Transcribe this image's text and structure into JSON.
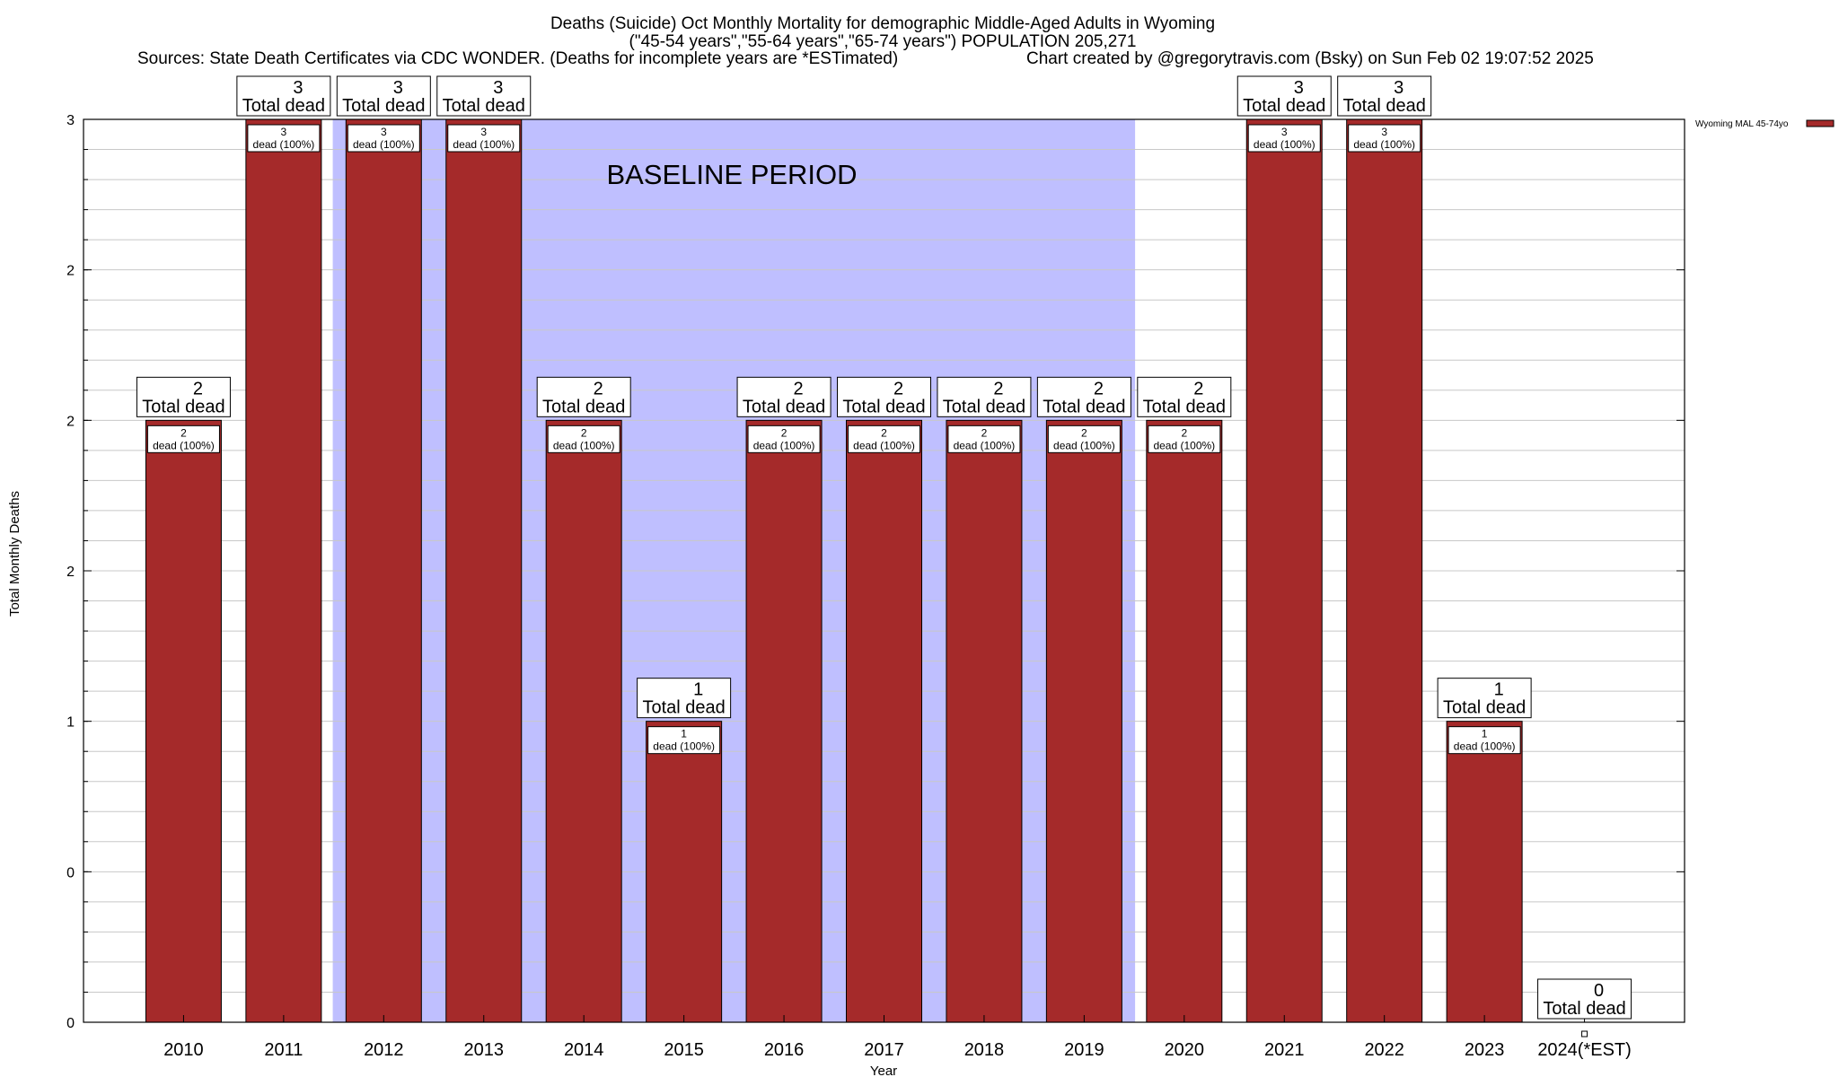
{
  "chart_data": {
    "type": "bar",
    "title_line1": "Deaths (Suicide) Oct Monthly Mortality for demographic Middle-Aged Adults in Wyoming",
    "title_line2": "(\"45-54 years\",\"55-64 years\",\"65-74 years\") POPULATION 205,271",
    "sources": "Sources: State Death Certificates via CDC WONDER. (Deaths for incomplete years are *ESTimated)",
    "credit": "Chart created by @gregorytravis.com (Bsky) on Sun Feb 02 19:07:52 2025",
    "xlabel": "Year",
    "ylabel": "Total Monthly Deaths",
    "categories": [
      "2010",
      "2011",
      "2012",
      "2013",
      "2014",
      "2015",
      "2016",
      "2017",
      "2018",
      "2019",
      "2020",
      "2021",
      "2022",
      "2023",
      "2024(*EST)"
    ],
    "series": [
      {
        "name": "Wyoming MAL 45-74yo",
        "color": "#a52a2a",
        "values": [
          2,
          3,
          3,
          3,
          2,
          1,
          2,
          2,
          2,
          2,
          2,
          3,
          3,
          1,
          0
        ]
      }
    ],
    "top_labels": [
      {
        "count": "2",
        "text": "Total dead"
      },
      {
        "count": "3",
        "text": "Total dead"
      },
      {
        "count": "3",
        "text": "Total dead"
      },
      {
        "count": "3",
        "text": "Total dead"
      },
      {
        "count": "2",
        "text": "Total dead"
      },
      {
        "count": "1",
        "text": "Total dead"
      },
      {
        "count": "2",
        "text": "Total dead"
      },
      {
        "count": "2",
        "text": "Total dead"
      },
      {
        "count": "2",
        "text": "Total dead"
      },
      {
        "count": "2",
        "text": "Total dead"
      },
      {
        "count": "2",
        "text": "Total dead"
      },
      {
        "count": "3",
        "text": "Total dead"
      },
      {
        "count": "3",
        "text": "Total dead"
      },
      {
        "count": "1",
        "text": "Total dead"
      },
      {
        "count": "0",
        "text": "Total dead"
      }
    ],
    "inner_labels": [
      {
        "count": "2",
        "text": "dead (100%)"
      },
      {
        "count": "3",
        "text": "dead (100%)"
      },
      {
        "count": "3",
        "text": "dead (100%)"
      },
      {
        "count": "3",
        "text": "dead (100%)"
      },
      {
        "count": "2",
        "text": "dead (100%)"
      },
      {
        "count": "1",
        "text": "dead (100%)"
      },
      {
        "count": "2",
        "text": "dead (100%)"
      },
      {
        "count": "2",
        "text": "dead (100%)"
      },
      {
        "count": "2",
        "text": "dead (100%)"
      },
      {
        "count": "2",
        "text": "dead (100%)"
      },
      {
        "count": "2",
        "text": "dead (100%)"
      },
      {
        "count": "3",
        "text": "dead (100%)"
      },
      {
        "count": "3",
        "text": "dead (100%)"
      },
      {
        "count": "1",
        "text": "dead (100%)"
      },
      null
    ],
    "ylim": [
      0,
      3
    ],
    "y_tick_positions": [
      0,
      0.5,
      1,
      1.5,
      2,
      2.5,
      3
    ],
    "y_tick_labels": [
      "0",
      "0",
      "1",
      "2",
      "2",
      "2",
      "3"
    ],
    "minor_grid_step": 0.1,
    "grid": true,
    "baseline_period": {
      "label": "BASELINE PERIOD",
      "from": "2012",
      "to": "2019",
      "color": "#bfbfff"
    },
    "legend_position": "top-right"
  }
}
